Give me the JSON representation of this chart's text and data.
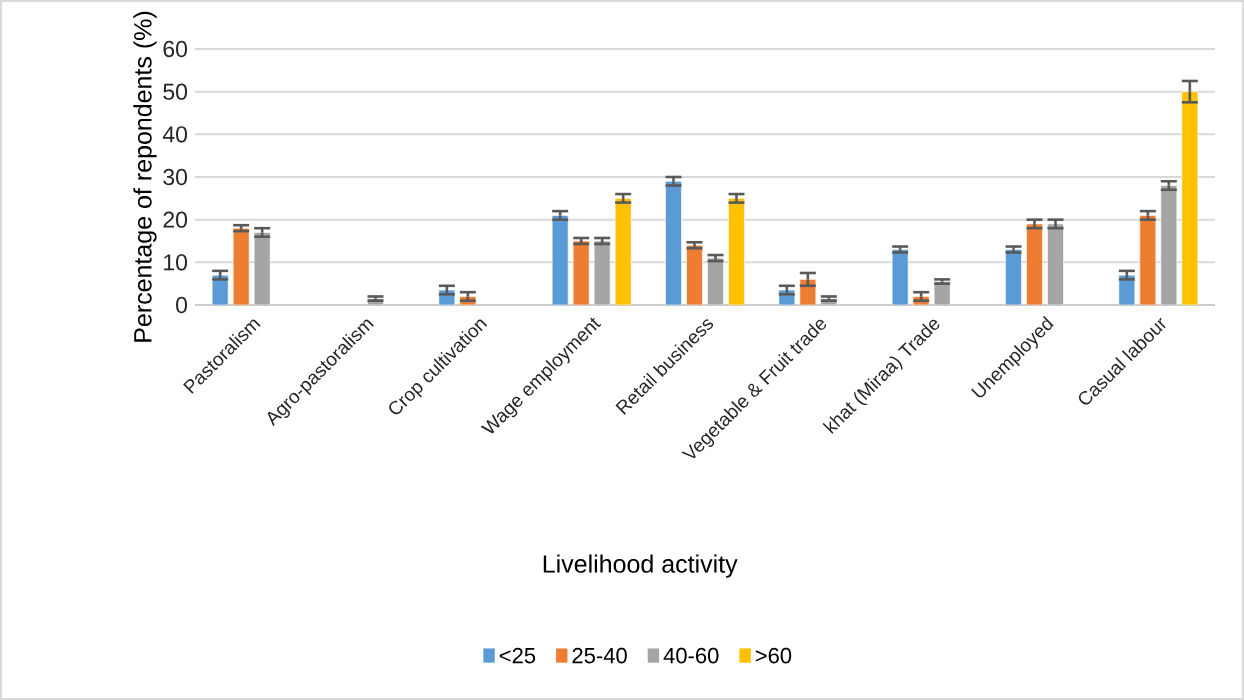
{
  "chart_data": {
    "type": "bar",
    "xlabel": "Livelihood activity",
    "ylabel": "Percentage of repondents (%)",
    "categories": [
      "Pastoralism",
      "Agro-pastoralism",
      "Crop cultivation",
      "Wage employment",
      "Retail business",
      "Vegetable & Fruit trade",
      "khat (Miraa) Trade",
      "Unemployed",
      "Casual labour"
    ],
    "series": [
      {
        "name": "<25",
        "color": "#5b9bd5",
        "values": [
          7,
          null,
          3.5,
          21,
          29,
          3.5,
          13,
          13,
          7
        ],
        "errors": [
          1,
          null,
          1,
          1,
          1,
          1,
          0.7,
          0.7,
          1
        ]
      },
      {
        "name": "25-40",
        "color": "#ed7d31",
        "values": [
          18,
          null,
          2,
          15,
          14,
          6,
          2,
          19,
          21
        ],
        "errors": [
          0.7,
          null,
          1,
          0.7,
          0.7,
          1.5,
          1,
          1,
          1
        ]
      },
      {
        "name": "40-60",
        "color": "#a5a5a5",
        "values": [
          17,
          1.5,
          null,
          15,
          11,
          1.5,
          5.5,
          19,
          28
        ],
        "errors": [
          1,
          0.5,
          null,
          0.7,
          0.7,
          0.5,
          0.5,
          1,
          1
        ]
      },
      {
        "name": ">60",
        "color": "#ffc000",
        "values": [
          null,
          null,
          null,
          25,
          25,
          null,
          null,
          null,
          50
        ],
        "errors": [
          null,
          null,
          null,
          1,
          1,
          null,
          null,
          null,
          2.5
        ]
      }
    ],
    "ylim": [
      0,
      60
    ],
    "yticks": [
      0,
      10,
      20,
      30,
      40,
      50,
      60
    ],
    "grid": "y",
    "legend": "bottom"
  }
}
